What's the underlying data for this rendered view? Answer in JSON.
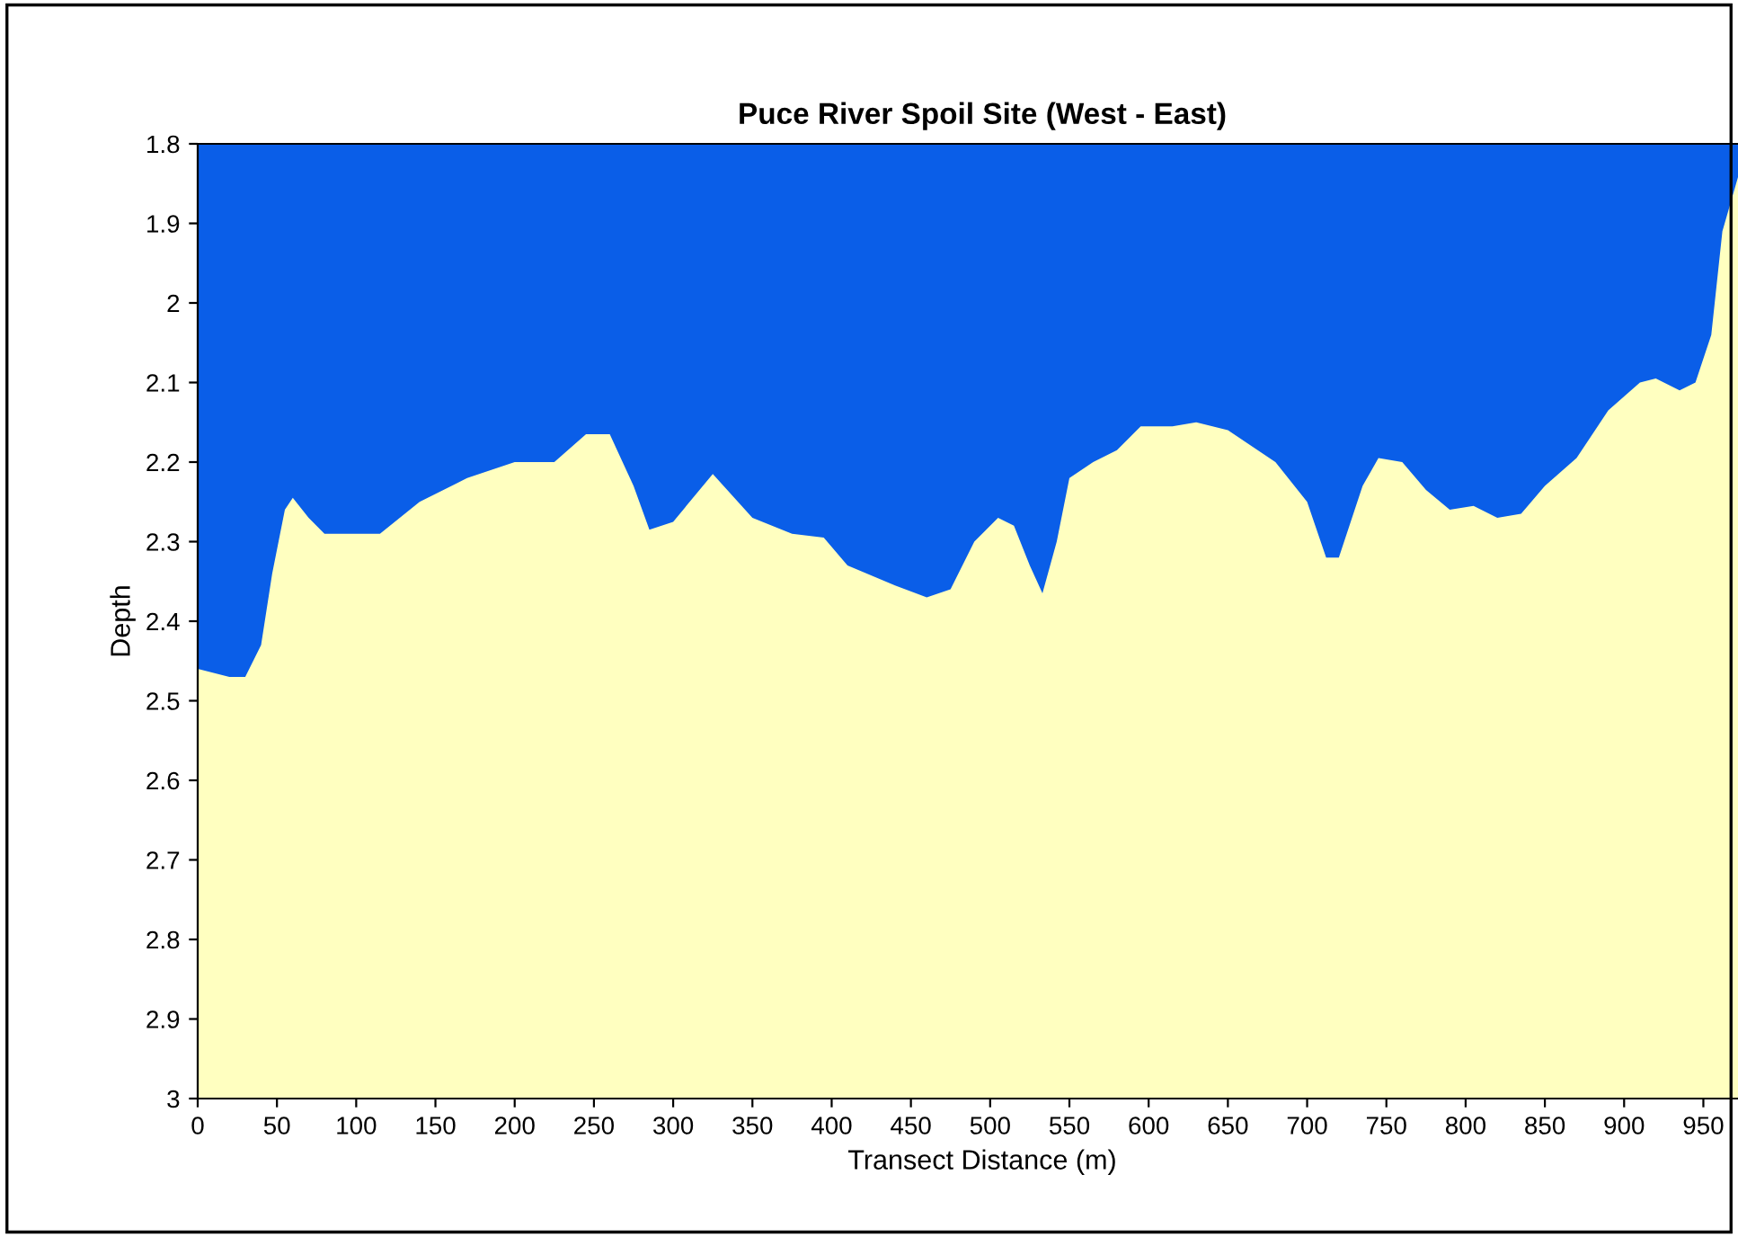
{
  "chart_data": {
    "type": "area",
    "title": "Puce River Spoil Site (West - East)",
    "xlabel": "Transect Distance (m)",
    "ylabel": "Depth",
    "x": [
      0,
      20,
      30,
      40,
      47,
      55,
      60,
      70,
      80,
      100,
      115,
      140,
      170,
      200,
      225,
      245,
      260,
      275,
      285,
      300,
      325,
      350,
      375,
      395,
      410,
      440,
      460,
      475,
      490,
      505,
      515,
      525,
      533,
      542,
      550,
      565,
      580,
      595,
      615,
      630,
      650,
      680,
      700,
      712,
      720,
      735,
      745,
      760,
      775,
      790,
      805,
      820,
      835,
      850,
      870,
      890,
      910,
      920,
      935,
      945,
      955,
      962,
      975,
      982
    ],
    "series": [
      {
        "color": "#0a5ee8",
        "values": [
          2.46,
          2.47,
          2.47,
          2.43,
          2.34,
          2.26,
          2.245,
          2.27,
          2.29,
          2.29,
          2.29,
          2.25,
          2.22,
          2.2,
          2.2,
          2.165,
          2.165,
          2.23,
          2.285,
          2.275,
          2.215,
          2.27,
          2.29,
          2.295,
          2.33,
          2.355,
          2.37,
          2.36,
          2.3,
          2.27,
          2.28,
          2.33,
          2.365,
          2.3,
          2.22,
          2.2,
          2.185,
          2.155,
          2.155,
          2.15,
          2.16,
          2.2,
          2.25,
          2.32,
          2.32,
          2.23,
          2.195,
          2.2,
          2.235,
          2.26,
          2.255,
          2.27,
          2.265,
          2.23,
          2.195,
          2.135,
          2.1,
          2.095,
          2.11,
          2.1,
          2.04,
          1.91,
          1.82,
          1.8
        ]
      }
    ],
    "bands": [
      {
        "axis": "y",
        "from": 1.8,
        "to": 3,
        "color": "#ffffc0"
      }
    ],
    "xlim": [
      0,
      990
    ],
    "ylim": [
      3,
      1.8
    ],
    "xticks": [
      0,
      50,
      100,
      150,
      200,
      250,
      300,
      350,
      400,
      450,
      500,
      550,
      600,
      650,
      700,
      750,
      800,
      850,
      900,
      950
    ],
    "yticks": [
      1.8,
      1.9,
      2,
      2.1,
      2.2,
      2.3,
      2.4,
      2.5,
      2.6,
      2.7,
      2.8,
      2.9,
      3
    ],
    "grid": false,
    "legend": false
  }
}
